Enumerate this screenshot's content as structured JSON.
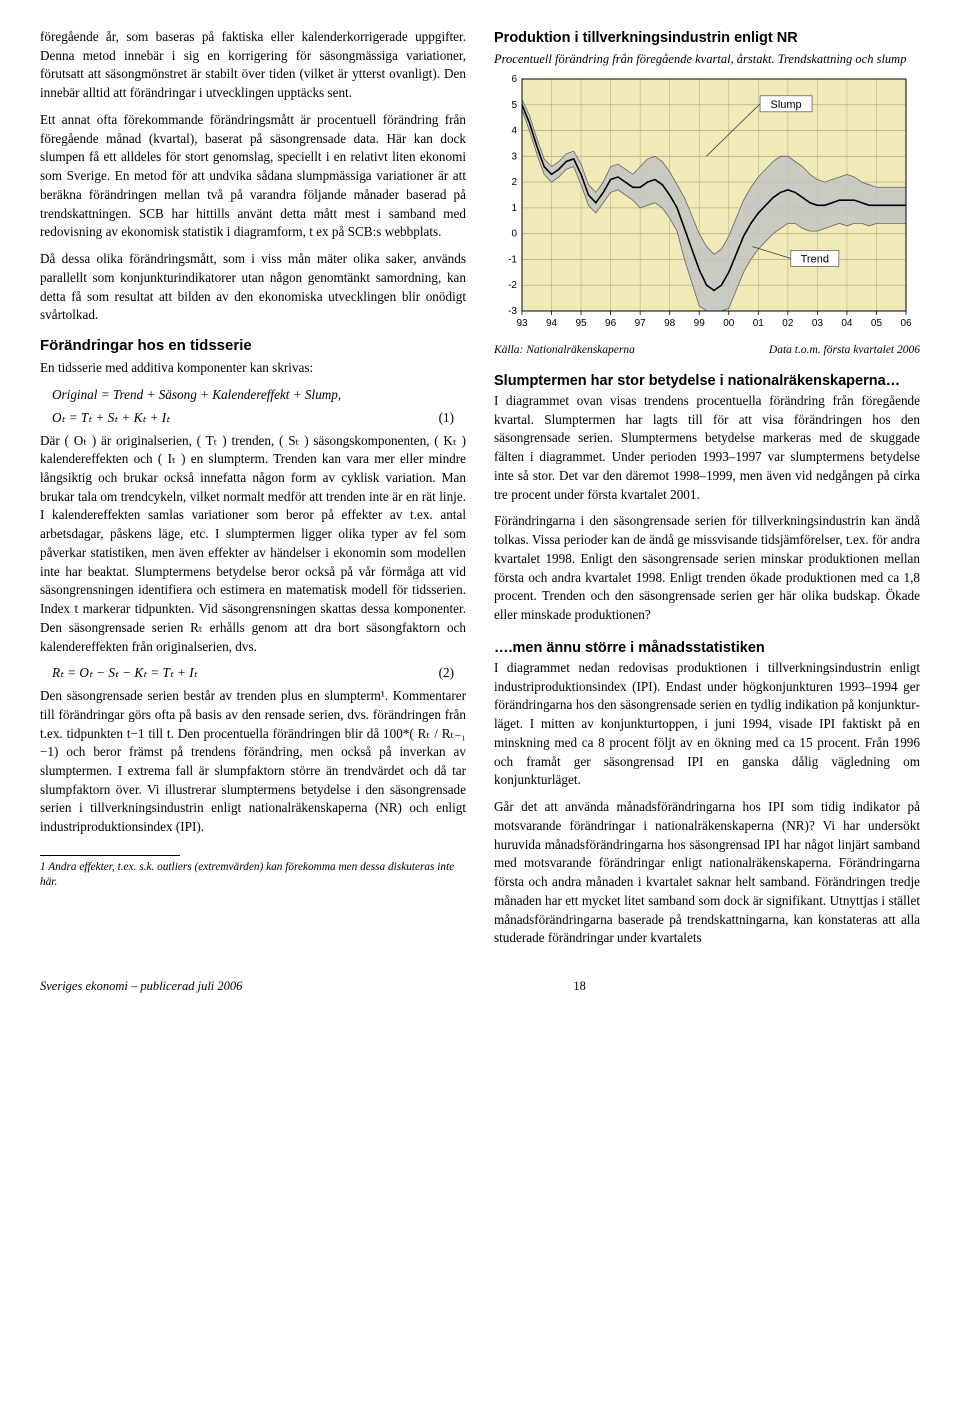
{
  "left": {
    "p1": "föregående år, som baseras på faktiska eller kalenderkorr­igerade uppgifter. Denna metod innebär i sig en korrigering för säsongmässiga variationer, förutsatt att säsongmönstret är stabilt över tiden (vilket är ytterst ovanligt). Den innebär alltid att förändringar i utvecklingen upptäcks sent.",
    "p2": "Ett annat ofta förekommande förändringsmått är procentu­ell förändring från föregående månad (kvartal), baserat på säsongrensade data. Här kan dock slumpen få ett alldeles för stort genomslag, speciellt i en relativt liten ekonomi som Sverige. En metod för att undvika sådana slumpmässiga va­riationer är att beräkna förändringen mellan två på varandra följande månader baserad på trendskattningen. SCB har hit­tills använt detta mått mest i samband med redovisning av ekonomisk statistik i diagramform, t ex på SCB:s webbplats.",
    "p3": "Då dessa olika förändringsmått, som i viss mån mäter olika saker, används parallellt som konjunkturindikatorer utan någon genomtänkt samordning, kan detta få som resultat att bilden av den ekonomiska utvecklingen blir onödigt svårtolkad.",
    "h_forandr": "Förändringar hos en tidsserie",
    "p4": "En tidsserie med additiva komponenter kan skrivas:",
    "eq0": "Original = Trend + Säsong + Kalendereffekt + Slump,",
    "eq1": "Oₜ = Tₜ + Sₜ + Kₜ + Iₜ",
    "eq1n": "(1)",
    "p5": "Där ( Oₜ ) är originalserien, ( Tₜ ) trenden, ( Sₜ ) säsongskom­ponenten, ( Kₜ ) kalendereffekten och ( Iₜ ) en slumpterm. Trenden kan vara mer eller mindre långsiktig och brukar också innefatta någon form av cyklisk variation. Man brukar tala om trendcykeln, vilket normalt medför att trenden inte är en rät linje. I kalendereffekten samlas variationer som beror på effekter av t.ex. antal arbetsdagar, påskens läge, etc. I slumptermen ligger olika typer av fel som påverkar statistiken, men även effekter av händelser i ekonomin som modellen inte har beaktat. Slumptermens betydelse beror också på vår förmåga att vid säsongrensningen identifiera och estimera en matematisk modell för tidsserien. Index t markerar tidpunkten. Vid säsongrensningen skattas dessa komponenter. Den säsongrensade serien Rₜ erhålls ge­nom att dra bort säsongfaktorn och kalendereffekten från originalserien, dvs.",
    "eq2": "Rₜ = Oₜ − Sₜ − Kₜ = Tₜ + Iₜ",
    "eq2n": "(2)",
    "p6": "Den säsongrensade serien består av trenden plus en slump­term¹. Kommentarer till förändringar görs ofta på basis av den rensade serien, dvs. förändringen från t.ex. tidpunkten t−1 till t. Den procentuella förändringen blir då 100*( Rₜ / Rₜ₋₁ −1) och beror främst på trendens förändring, men också på inverkan av slumptermen. I extrema fall är slumpfaktorn större än trendvärdet och då tar slumpfaktorn över. Vi illus­trerar slumptermens betydelse i den säsongrensade serien i tillverkningsindustrin enligt nationalräkenskaperna (NR) och enligt industriproduktionsindex (IPI).",
    "fn": "1 Andra effekter, t.ex. s.k. outliers (extremvärden) kan förekomma men dessa diskuteras inte här."
  },
  "right": {
    "chart_title": "Produktion i tillverkningsindustrin enligt NR",
    "chart_sub": "Procentuell förändring från föregående kvartal, årstakt. Trendskattning och slump",
    "source_l": "Källa: Nationalräkenskaperna",
    "source_r": "Data t.o.m. första kvartalet 2006",
    "h_slump": "Slumptermen har stor betydelse i nationalräkenskaperna…",
    "p1": "I diagrammet ovan visas trendens procentuella förändring från föregående kvartal. Slumptermen har lagts till för att visa förändringen hos den säsongrensade serien. Slumpter­mens betydelse markeras med de skuggade fälten i dia­grammet. Under perioden 1993–1997 var slumptermens betydelse inte så stor. Det var den däremot 1998–1999, men även vid nedgången på cirka tre procent under första kvartalet 2001.",
    "p2": "Förändringarna i den säsongrensade serien för tillverknings­industrin kan ändå tolkas. Vissa perioder kan de ändå ge missvisande tidsjämförelser, t.ex. för andra kvartalet 1998. Enligt den säsongrensade serien minskar produktionen mel­lan första och andra kvartalet 1998. Enligt trenden ökade produktionen med ca 1,8 procent. Trenden och den säson­grensade serien ger här olika budskap. Ökade eller mins­kade produktionen?",
    "h_men": "….men ännu större i månadsstatistiken",
    "p3": "I diagrammet nedan redovisas produktionen i tillverknings­industrin enligt industriproduktionsindex (IPI). Endast under högkonjunkturen 1993–1994 ger förändringarna hos den säsongrensade serien en tydlig indikation på konjunktur­läget. I mitten av konjunkturtoppen, i juni 1994, visade IPI faktiskt  på en minskning med ca 8 procent följt av en ökning med ca 15 procent. Från 1996 och framåt ger säson­grensad IPI en ganska dålig vägledning om konjunkturläget.",
    "p4": "Går det att använda månadsförändringarna hos IPI som tidig indikator på motsvarande förändringar i nationalräkenska­perna (NR)? Vi har undersökt huruvida månadsförändring­arna hos säsongrensad IPI har något linjärt samband med motsvarande förändringar enligt nationalräkenskaperna. Förändringarna första och andra månaden i kvartalet saknar helt samband. Förändringen tredje månaden har ett mycket litet samband som dock är signifikant. Utnyttjas i stället månadsförändringarna baserade på trendskattningarna, kan konstateras att alla studerade förändringar under kvartalets"
  },
  "footer": {
    "left": "Sveriges ekonomi – publicerad juli 2006",
    "page": "18"
  },
  "chart": {
    "type": "line-with-band",
    "bg": "#f2e9b8",
    "plot_border": "#000000",
    "grid_color": "#b9b08a",
    "band_color": "#c3c3c3",
    "trend_color": "#000000",
    "slump_color": "#666666",
    "y": {
      "min": -3,
      "max": 6,
      "step": 1
    },
    "x_labels": [
      "93",
      "94",
      "95",
      "96",
      "97",
      "98",
      "99",
      "00",
      "01",
      "02",
      "03",
      "04",
      "05",
      "06"
    ],
    "label_slump": "Slump",
    "label_trend": "Trend",
    "title_fontsize": 14.5,
    "axis_fontsize": 10,
    "trend": [
      5.0,
      4.3,
      3.4,
      2.6,
      2.3,
      2.5,
      2.8,
      2.9,
      2.3,
      1.5,
      1.2,
      1.6,
      2.1,
      2.2,
      2.0,
      1.8,
      1.8,
      2.0,
      2.1,
      1.9,
      1.5,
      1.0,
      0.2,
      -0.6,
      -1.4,
      -2.0,
      -2.2,
      -2.0,
      -1.5,
      -0.8,
      -0.1,
      0.4,
      0.8,
      1.1,
      1.4,
      1.6,
      1.7,
      1.6,
      1.4,
      1.2,
      1.1,
      1.1,
      1.2,
      1.3,
      1.3,
      1.3,
      1.2,
      1.1,
      1.1,
      1.1,
      1.1,
      1.1,
      1.1
    ],
    "slump_hi": [
      5.2,
      4.6,
      3.7,
      2.9,
      2.6,
      2.8,
      3.1,
      3.2,
      2.7,
      1.9,
      1.6,
      2.0,
      2.6,
      2.7,
      2.5,
      2.3,
      2.6,
      2.9,
      3.0,
      2.8,
      2.4,
      1.9,
      1.4,
      0.7,
      0.0,
      -0.5,
      -0.8,
      -0.6,
      -0.1,
      0.6,
      1.3,
      1.8,
      2.2,
      2.5,
      2.8,
      3.0,
      3.0,
      2.8,
      2.6,
      2.3,
      2.1,
      2.0,
      2.1,
      2.2,
      2.3,
      2.2,
      2.0,
      1.9,
      1.8,
      1.8,
      1.8,
      1.8,
      1.8
    ],
    "slump_lo": [
      4.8,
      4.0,
      3.1,
      2.3,
      2.0,
      2.2,
      2.5,
      2.6,
      1.9,
      1.1,
      0.8,
      1.2,
      1.6,
      1.7,
      1.5,
      1.3,
      1.0,
      1.1,
      1.2,
      1.0,
      0.6,
      0.1,
      -1.0,
      -1.9,
      -2.8,
      -3.0,
      -3.0,
      -3.0,
      -2.9,
      -2.2,
      -1.5,
      -1.0,
      -0.6,
      -0.3,
      0.0,
      0.2,
      0.4,
      0.4,
      0.2,
      0.1,
      0.1,
      0.2,
      0.3,
      0.4,
      0.3,
      0.4,
      0.4,
      0.3,
      0.4,
      0.4,
      0.4,
      0.4,
      0.4
    ]
  }
}
